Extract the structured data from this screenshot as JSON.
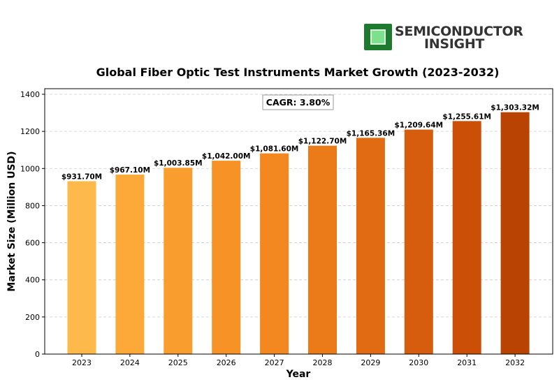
{
  "brand": {
    "line1": "SEMICONDUCTOR",
    "line2": "INSIGHT",
    "colors": {
      "chip": "#1e7a2e",
      "chip_inner": "#7ee08c",
      "text": "#333333"
    }
  },
  "chart_data": {
    "type": "bar",
    "title": "Global Fiber Optic Test Instruments Market Growth (2023-2032)",
    "xlabel": "Year",
    "ylabel": "Market Size (Million USD)",
    "categories": [
      "2023",
      "2024",
      "2025",
      "2026",
      "2027",
      "2028",
      "2029",
      "2030",
      "2031",
      "2032"
    ],
    "values": [
      931.7,
      967.1,
      1003.85,
      1042.0,
      1081.6,
      1122.7,
      1165.36,
      1209.64,
      1255.61,
      1303.32
    ],
    "data_labels": [
      "$931.70M",
      "$967.10M",
      "$1,003.85M",
      "$1,042.00M",
      "$1,081.60M",
      "$1,122.70M",
      "$1,165.36M",
      "$1,209.64M",
      "$1,255.61M",
      "$1,303.32M"
    ],
    "ylim": [
      0,
      1430
    ],
    "yticks": [
      0,
      200,
      400,
      600,
      800,
      1000,
      1200,
      1400
    ],
    "grid": true,
    "annotation": "CAGR: 3.80%",
    "bar_colors": [
      "#fdb94a",
      "#fca93a",
      "#f99d2e",
      "#f69226",
      "#f38720",
      "#eb7a19",
      "#e06b12",
      "#d55d0d",
      "#cc4f07",
      "#b94303"
    ]
  }
}
